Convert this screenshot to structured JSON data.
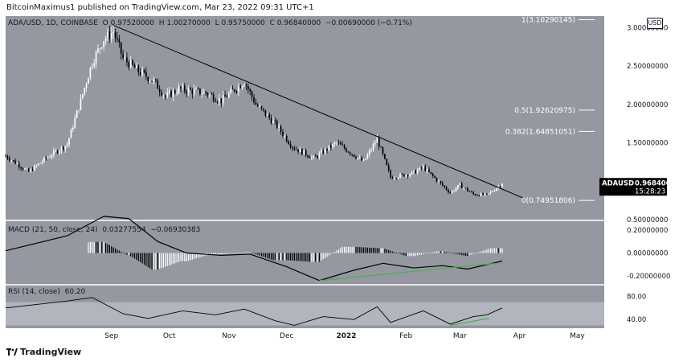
{
  "header": {
    "publisher": "BitcoinMaximus1 published on TradingView.com, Mar 23, 2022 09:31 UTC+1"
  },
  "footer": {
    "brand": "TradingView"
  },
  "legend": {
    "symbol": "ADA/USD, 1D, COINBASE",
    "o_label": "O",
    "o_value": "0.97520000",
    "h_label": "H",
    "h_value": "1.00270000",
    "l_label": "L",
    "l_value": "0.95750000",
    "c_label": "C",
    "c_value": "0.96840000",
    "change": "−0.00690000 (−0.71%)",
    "macd": "MACD (21, 50, close, 24)",
    "macd_v1": "0.03277554",
    "macd_v2": "−0.06930383",
    "rsi": "RSI (14, close)",
    "rsi_v": "60.20"
  },
  "currency_badge": "USD",
  "price_tag": {
    "symbol": "ADAUSD",
    "price": "0.96840000",
    "countdown": "15:28:23"
  },
  "chart_data": {
    "type": "candlestick",
    "title": "ADA/USD, 1D, COINBASE",
    "price_axis": {
      "ylim": [
        0.5,
        3.15
      ],
      "ticks": [
        {
          "value": 3.0,
          "label": "3.00000000"
        },
        {
          "value": 2.5,
          "label": "2.50000000"
        },
        {
          "value": 2.0,
          "label": "2.00000000"
        },
        {
          "value": 1.5,
          "label": "1.50000000"
        },
        {
          "value": 0.5,
          "label": "0.50000000"
        }
      ]
    },
    "time_axis": {
      "ticks": [
        {
          "date": "2021-09-01",
          "label": "Sep",
          "bold": false
        },
        {
          "date": "2021-10-01",
          "label": "Oct",
          "bold": false
        },
        {
          "date": "2021-11-01",
          "label": "Nov",
          "bold": false
        },
        {
          "date": "2021-12-01",
          "label": "Dec",
          "bold": false
        },
        {
          "date": "2022-01-01",
          "label": "2022",
          "bold": true
        },
        {
          "date": "2022-02-01",
          "label": "Feb",
          "bold": false
        },
        {
          "date": "2022-03-01",
          "label": "Mar",
          "bold": false
        },
        {
          "date": "2022-04-01",
          "label": "Apr",
          "bold": false
        },
        {
          "date": "2022-05-01",
          "label": "May",
          "bold": false
        }
      ],
      "range": [
        "2021-07-08",
        "2022-05-15"
      ]
    },
    "close_path": [
      {
        "date": "2021-07-08",
        "close": 1.33
      },
      {
        "date": "2021-07-20",
        "close": 1.12
      },
      {
        "date": "2021-07-29",
        "close": 1.3
      },
      {
        "date": "2021-08-09",
        "close": 1.48
      },
      {
        "date": "2021-08-16",
        "close": 2.05
      },
      {
        "date": "2021-08-22",
        "close": 2.55
      },
      {
        "date": "2021-08-28",
        "close": 2.85
      },
      {
        "date": "2021-09-02",
        "close": 2.95
      },
      {
        "date": "2021-09-07",
        "close": 2.6
      },
      {
        "date": "2021-09-14",
        "close": 2.45
      },
      {
        "date": "2021-09-23",
        "close": 2.3
      },
      {
        "date": "2021-09-29",
        "close": 2.1
      },
      {
        "date": "2021-10-06",
        "close": 2.2
      },
      {
        "date": "2021-10-20",
        "close": 2.15
      },
      {
        "date": "2021-10-28",
        "close": 2.05
      },
      {
        "date": "2021-11-09",
        "close": 2.3
      },
      {
        "date": "2021-11-15",
        "close": 2.0
      },
      {
        "date": "2021-11-25",
        "close": 1.75
      },
      {
        "date": "2021-12-04",
        "close": 1.45
      },
      {
        "date": "2021-12-15",
        "close": 1.3
      },
      {
        "date": "2021-12-27",
        "close": 1.5
      },
      {
        "date": "2022-01-10",
        "close": 1.25
      },
      {
        "date": "2022-01-17",
        "close": 1.55
      },
      {
        "date": "2022-01-24",
        "close": 1.05
      },
      {
        "date": "2022-02-04",
        "close": 1.1
      },
      {
        "date": "2022-02-10",
        "close": 1.18
      },
      {
        "date": "2022-02-24",
        "close": 0.85
      },
      {
        "date": "2022-03-01",
        "close": 0.95
      },
      {
        "date": "2022-03-08",
        "close": 0.83
      },
      {
        "date": "2022-03-15",
        "close": 0.82
      },
      {
        "date": "2022-03-23",
        "close": 0.968
      }
    ],
    "trendline": {
      "from": {
        "date": "2021-09-02",
        "value": 3.03
      },
      "to": {
        "date": "2022-04-03",
        "value": 0.78
      }
    },
    "fibonacci": [
      {
        "level": "1",
        "value": 3.10290145,
        "label": "1(3.10290145)"
      },
      {
        "level": "0.5",
        "value": 1.92620975,
        "label": "0.5(1.92620975)"
      },
      {
        "level": "0.382",
        "value": 1.64851051,
        "label": "0.382(1.64851051)"
      },
      {
        "level": "0",
        "value": 0.74951806,
        "label": "0(0.74951806)"
      }
    ],
    "macd": {
      "params": [
        21,
        50,
        "close",
        24
      ],
      "values": [
        0.03277554,
        -0.06930383
      ],
      "axis_ticks": [
        {
          "value": 0.2,
          "label": "0.20000000"
        },
        {
          "value": 0.0,
          "label": "0.00000000"
        },
        {
          "value": -0.2,
          "label": "-0.20000000"
        }
      ],
      "ylim": [
        -0.27,
        0.27
      ],
      "line": [
        {
          "date": "2021-07-08",
          "value": 0.02
        },
        {
          "date": "2021-08-09",
          "value": 0.15
        },
        {
          "date": "2021-08-28",
          "value": 0.32
        },
        {
          "date": "2021-09-10",
          "value": 0.3
        },
        {
          "date": "2021-09-25",
          "value": 0.1
        },
        {
          "date": "2021-10-10",
          "value": 0.0
        },
        {
          "date": "2021-10-28",
          "value": -0.02
        },
        {
          "date": "2021-11-12",
          "value": -0.01
        },
        {
          "date": "2021-12-01",
          "value": -0.12
        },
        {
          "date": "2021-12-18",
          "value": -0.24
        },
        {
          "date": "2022-01-05",
          "value": -0.15
        },
        {
          "date": "2022-01-20",
          "value": -0.09
        },
        {
          "date": "2022-02-05",
          "value": -0.13
        },
        {
          "date": "2022-02-20",
          "value": -0.11
        },
        {
          "date": "2022-03-05",
          "value": -0.14
        },
        {
          "date": "2022-03-23",
          "value": -0.07
        }
      ],
      "highlight_line": {
        "from": {
          "date": "2021-12-18",
          "value": -0.24
        },
        "to": {
          "date": "2022-03-20",
          "value": -0.09
        },
        "color": "#4caf50"
      }
    },
    "rsi": {
      "params": [
        14,
        "close"
      ],
      "value": 60.2,
      "axis_ticks": [
        {
          "value": 80,
          "label": "80.00"
        },
        {
          "value": 40,
          "label": "40.00"
        }
      ],
      "band": [
        30,
        70
      ],
      "ylim": [
        25,
        100
      ],
      "line": [
        {
          "date": "2021-07-08",
          "value": 60
        },
        {
          "date": "2021-08-09",
          "value": 72
        },
        {
          "date": "2021-08-22",
          "value": 78
        },
        {
          "date": "2021-09-07",
          "value": 50
        },
        {
          "date": "2021-09-20",
          "value": 42
        },
        {
          "date": "2021-10-08",
          "value": 55
        },
        {
          "date": "2021-10-25",
          "value": 48
        },
        {
          "date": "2021-11-09",
          "value": 58
        },
        {
          "date": "2021-11-25",
          "value": 38
        },
        {
          "date": "2021-12-05",
          "value": 30
        },
        {
          "date": "2021-12-20",
          "value": 45
        },
        {
          "date": "2022-01-05",
          "value": 40
        },
        {
          "date": "2022-01-17",
          "value": 62
        },
        {
          "date": "2022-01-24",
          "value": 35
        },
        {
          "date": "2022-02-10",
          "value": 55
        },
        {
          "date": "2022-02-24",
          "value": 32
        },
        {
          "date": "2022-03-08",
          "value": 45
        },
        {
          "date": "2022-03-15",
          "value": 48
        },
        {
          "date": "2022-03-23",
          "value": 60
        }
      ],
      "highlight_line": {
        "from": {
          "date": "2022-02-24",
          "value": 30
        },
        "to": {
          "date": "2022-03-16",
          "value": 42
        },
        "color": "#4caf50"
      }
    },
    "colors": {
      "background": "#9598a1",
      "candle_up": "#ffffff",
      "candle_down": "#000000",
      "trendline": "#000000",
      "fib": "#ffffff",
      "macd_line": "#000000",
      "rsi_line": "#000000",
      "rsi_band": "#b2b5be",
      "highlight": "#4caf50",
      "price_tag": "#000000"
    }
  }
}
